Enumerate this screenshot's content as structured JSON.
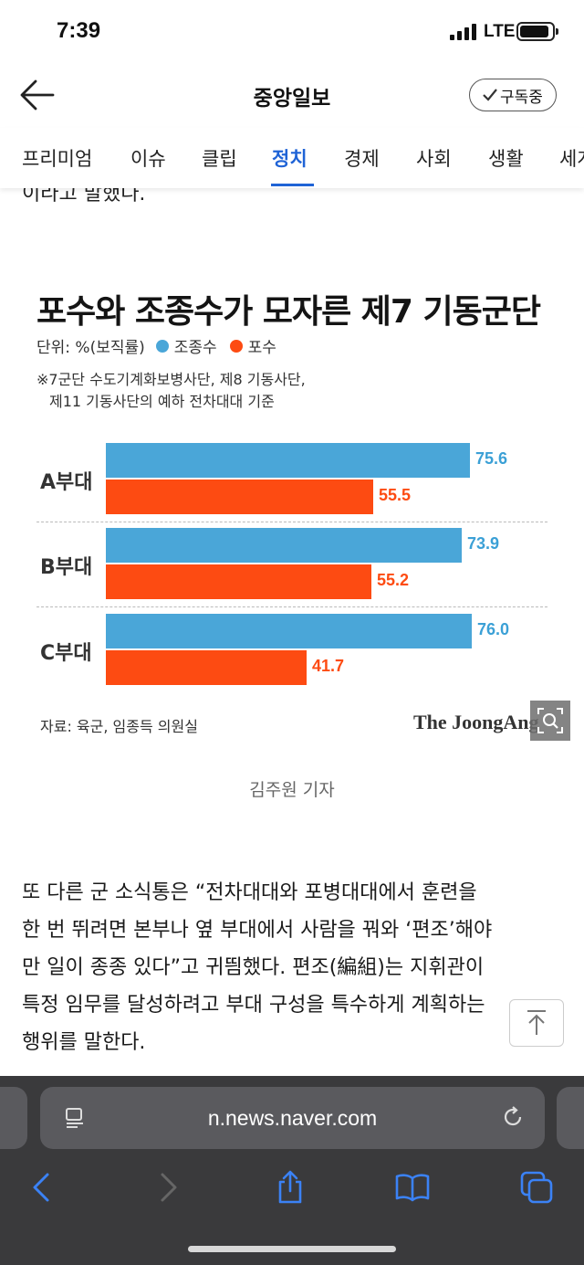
{
  "status": {
    "time": "7:39",
    "network": "LTE"
  },
  "header": {
    "title": "중앙일보",
    "subscribe_label": "구독중"
  },
  "tabs": [
    {
      "label": "프리미엄"
    },
    {
      "label": "이슈"
    },
    {
      "label": "클립"
    },
    {
      "label": "정치"
    },
    {
      "label": "경제"
    },
    {
      "label": "사회"
    },
    {
      "label": "생활"
    },
    {
      "label": "세계"
    }
  ],
  "active_tab": "정치",
  "cut_text": "이라고 말했다.",
  "infographic": {
    "legend_unit": "단위: %(보직률)",
    "note_line1": "※7군단 수도기계화보병사단, 제8 기동사단,",
    "note_line2": "제11 기동사단의 예하 전차대대 기준",
    "source": "자료: 육군, 임종득 의원실",
    "brand": "The JoongAng"
  },
  "chart_data": {
    "type": "bar",
    "orientation": "horizontal",
    "title": "포수와 조종수가 모자른 제7 기동군단",
    "categories": [
      "A부대",
      "B부대",
      "C부대"
    ],
    "series": [
      {
        "name": "조종수",
        "color": "#4aa6d8",
        "values": [
          75.6,
          73.9,
          76.0
        ]
      },
      {
        "name": "포수",
        "color": "#fd4b12",
        "values": [
          55.5,
          55.2,
          41.7
        ]
      }
    ],
    "value_labels": {
      "조종수": [
        "75.6",
        "73.9",
        "76.0"
      ],
      "포수": [
        "55.5",
        "55.2",
        "41.7"
      ]
    },
    "xlim": [
      0,
      100
    ],
    "legend_position": "top-left",
    "grid": false
  },
  "caption": "김주원 기자",
  "article": {
    "lines": [
      "또 다른 군 소식통은 “전차대대와 포병대대에서 훈련을",
      "한 번 뛰려면 본부나 옆 부대에서 사람을 꿔와 ‘편조’해야",
      "만 일이 종종 있다”고 귀띔했다. 편조(編組)는 지휘관이",
      "특정 임무를 달성하려고 부대 구성을 특수하게 계획하는",
      "행위를 말한다."
    ]
  },
  "browser": {
    "url": "n.news.naver.com"
  }
}
